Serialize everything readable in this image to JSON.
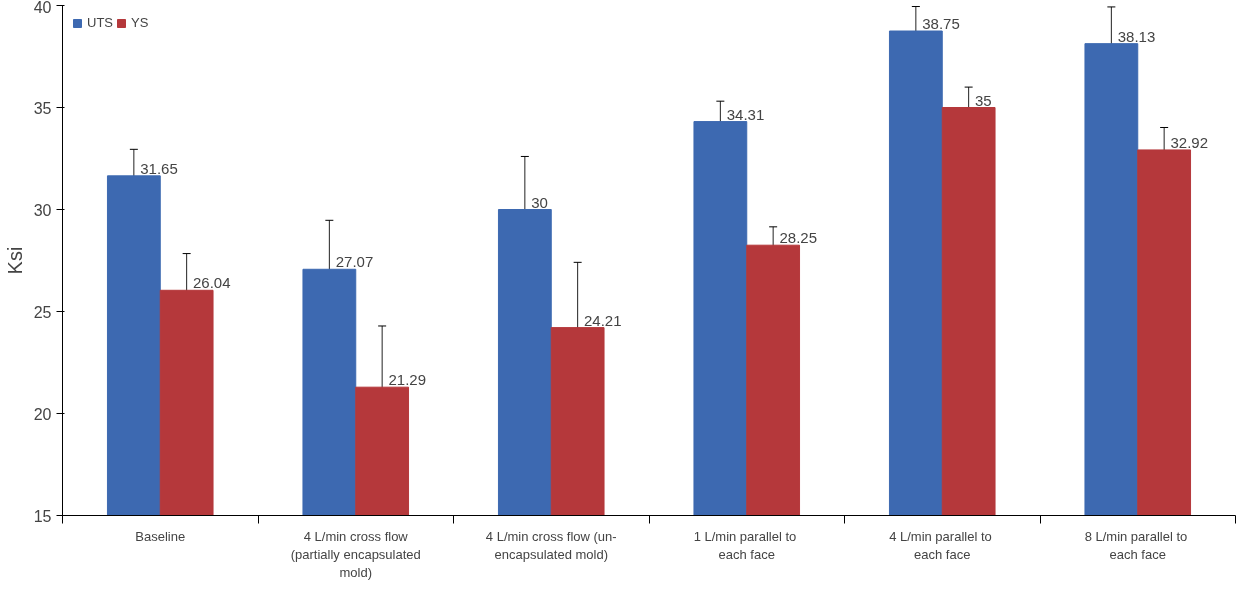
{
  "chart_data": {
    "type": "bar",
    "ylabel": "Ksi",
    "categories": [
      "Baseline",
      "4 L/min cross flow (partially encapsulated mold)",
      "4 L/min cross flow (un-encapsulated mold)",
      "1 L/min parallel  to each face",
      "4 L/min parallel  to each face",
      "8 L/min parallel  to each face"
    ],
    "series": [
      {
        "name": "UTS",
        "color": "#3d69b1",
        "values": [
          31.65,
          27.07,
          30,
          34.31,
          38.75,
          38.13
        ],
        "errors": [
          1.3,
          2.4,
          2.6,
          1.0,
          1.2,
          1.8
        ]
      },
      {
        "name": "YS",
        "color": "#b5383b",
        "values": [
          26.04,
          21.29,
          24.21,
          28.25,
          35,
          32.92
        ],
        "errors": [
          1.8,
          3.0,
          3.2,
          0.9,
          1.0,
          1.1
        ]
      }
    ],
    "ylim": [
      15,
      40
    ],
    "yticks": [
      15,
      20,
      25,
      30,
      35,
      40
    ],
    "grid": false,
    "legend": "top left",
    "data_labels": true
  }
}
